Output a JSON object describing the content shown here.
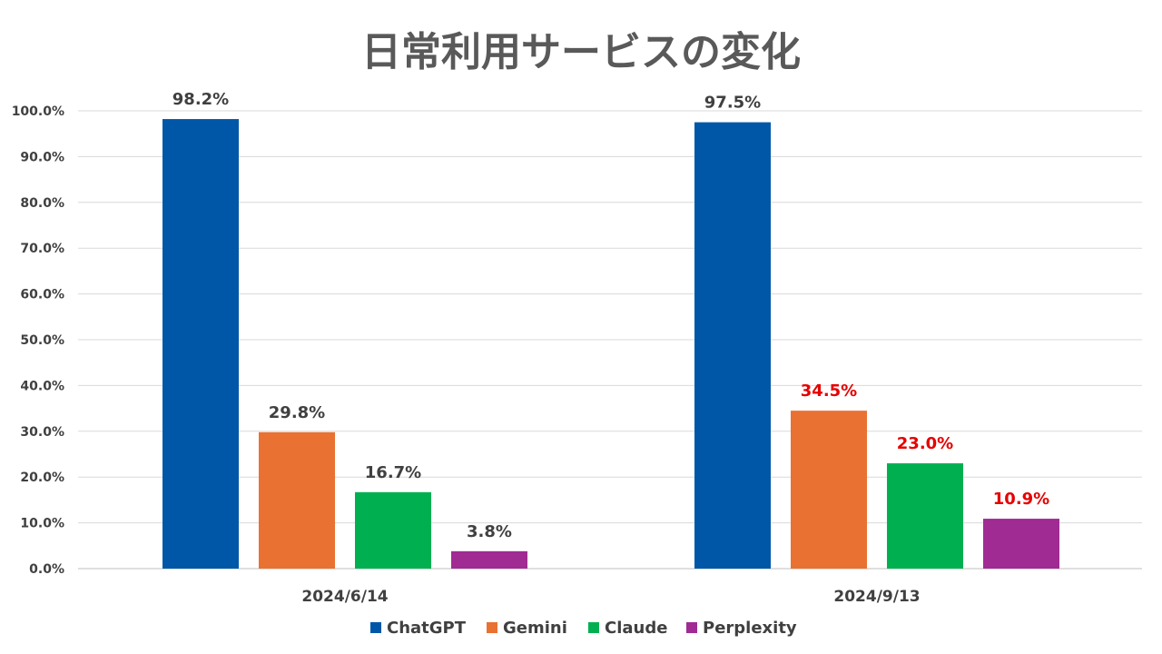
{
  "chart_data": {
    "type": "bar",
    "title": "日常利用サービスの変化",
    "categories": [
      "2024/6/14",
      "2024/9/13"
    ],
    "series": [
      {
        "name": "ChatGPT",
        "color": "#0057A8",
        "values": [
          98.2,
          97.5
        ],
        "labels": [
          "98.2%",
          "97.5%"
        ],
        "label_colors": [
          "#404040",
          "#404040"
        ]
      },
      {
        "name": "Gemini",
        "color": "#E97132",
        "values": [
          29.8,
          34.5
        ],
        "labels": [
          "29.8%",
          "34.5%"
        ],
        "label_colors": [
          "#404040",
          "#E60000"
        ]
      },
      {
        "name": "Claude",
        "color": "#00B050",
        "values": [
          16.7,
          23.0
        ],
        "labels": [
          "16.7%",
          "23.0%"
        ],
        "label_colors": [
          "#404040",
          "#E60000"
        ]
      },
      {
        "name": "Perplexity",
        "color": "#A02B93",
        "values": [
          3.8,
          10.9
        ],
        "labels": [
          "3.8%",
          "10.9%"
        ],
        "label_colors": [
          "#404040",
          "#E60000"
        ]
      }
    ],
    "ylim": [
      0,
      100
    ],
    "yticks": [
      0,
      10,
      20,
      30,
      40,
      50,
      60,
      70,
      80,
      90,
      100
    ],
    "ytick_labels": [
      "0.0%",
      "10.0%",
      "20.0%",
      "30.0%",
      "40.0%",
      "50.0%",
      "60.0%",
      "70.0%",
      "80.0%",
      "90.0%",
      "100.0%"
    ],
    "xlabel": "",
    "ylabel": "",
    "grid": true,
    "legend_position": "bottom"
  }
}
